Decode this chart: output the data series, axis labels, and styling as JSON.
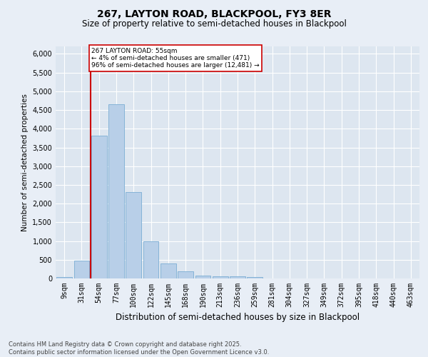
{
  "title1": "267, LAYTON ROAD, BLACKPOOL, FY3 8ER",
  "title2": "Size of property relative to semi-detached houses in Blackpool",
  "xlabel": "Distribution of semi-detached houses by size in Blackpool",
  "ylabel": "Number of semi-detached properties",
  "categories": [
    "9sqm",
    "31sqm",
    "54sqm",
    "77sqm",
    "100sqm",
    "122sqm",
    "145sqm",
    "168sqm",
    "190sqm",
    "213sqm",
    "236sqm",
    "259sqm",
    "281sqm",
    "304sqm",
    "327sqm",
    "349sqm",
    "372sqm",
    "395sqm",
    "418sqm",
    "440sqm",
    "463sqm"
  ],
  "values": [
    30,
    470,
    3820,
    4660,
    2300,
    1000,
    410,
    200,
    80,
    55,
    50,
    30,
    0,
    0,
    0,
    0,
    0,
    0,
    0,
    0,
    0
  ],
  "bar_color": "#b8cfe8",
  "bar_edge_color": "#7aadd4",
  "highlight_index": 2,
  "highlight_color": "#cc0000",
  "annotation_text": "267 LAYTON ROAD: 55sqm\n← 4% of semi-detached houses are smaller (471)\n96% of semi-detached houses are larger (12,481) →",
  "annotation_box_color": "#ffffff",
  "annotation_box_edge_color": "#cc0000",
  "ylim": [
    0,
    6200
  ],
  "yticks": [
    0,
    500,
    1000,
    1500,
    2000,
    2500,
    3000,
    3500,
    4000,
    4500,
    5000,
    5500,
    6000
  ],
  "footer": "Contains HM Land Registry data © Crown copyright and database right 2025.\nContains public sector information licensed under the Open Government Licence v3.0.",
  "bg_color": "#e8eef6",
  "plot_bg_color": "#dde6f0",
  "grid_color": "#ffffff",
  "title_fontsize": 10,
  "subtitle_fontsize": 8.5,
  "tick_fontsize": 7,
  "ylabel_fontsize": 7.5,
  "xlabel_fontsize": 8.5,
  "footer_fontsize": 6
}
